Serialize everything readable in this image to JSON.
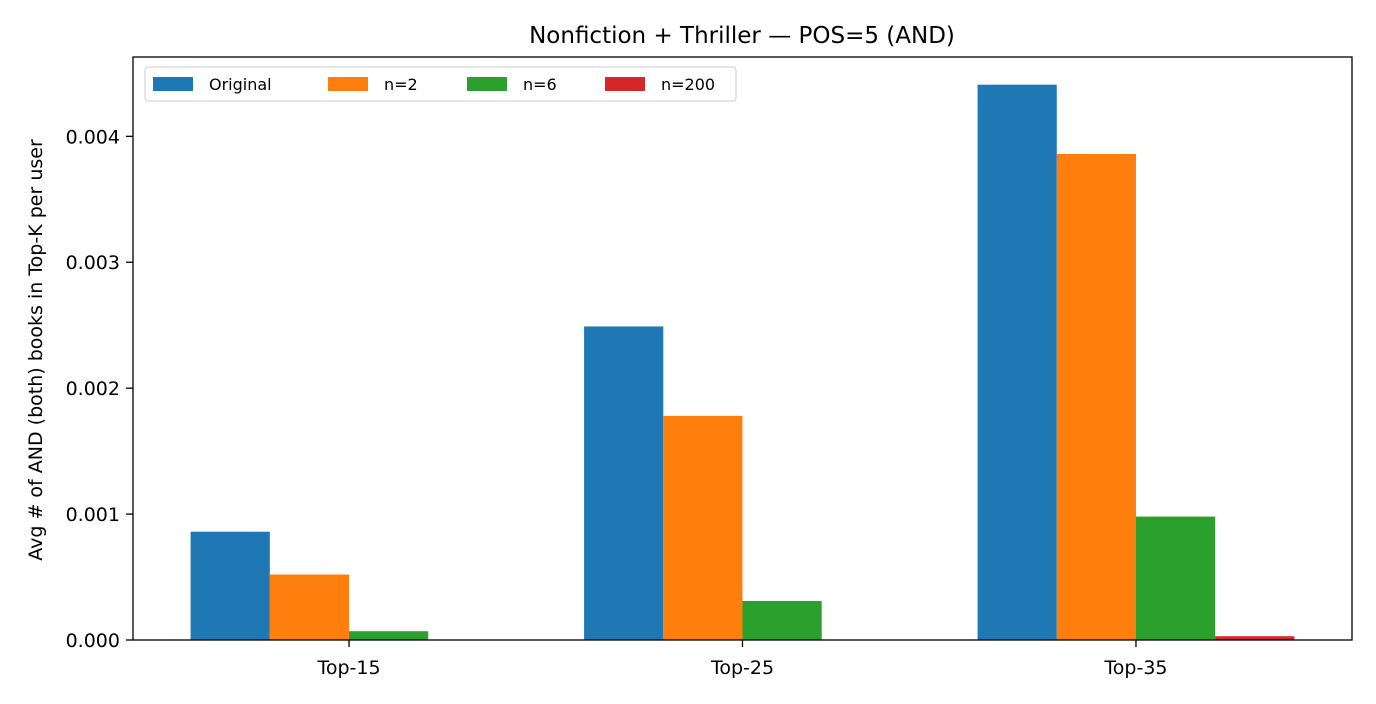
{
  "chart_data": {
    "type": "bar",
    "title": "Nonfiction + Thriller — POS=5 (AND)",
    "xlabel": "",
    "ylabel": "Avg # of AND (both) books in Top-K per user",
    "categories": [
      "Top-15",
      "Top-25",
      "Top-35"
    ],
    "series": [
      {
        "name": "Original",
        "color": "#1f77b4",
        "values": [
          0.00086,
          0.00249,
          0.00441
        ]
      },
      {
        "name": "n=2",
        "color": "#ff7f0e",
        "values": [
          0.00052,
          0.00178,
          0.00386
        ]
      },
      {
        "name": "n=6",
        "color": "#2ca02c",
        "values": [
          7e-05,
          0.00031,
          0.00098
        ]
      },
      {
        "name": "n=200",
        "color": "#d62728",
        "values": [
          0.0,
          0.0,
          3e-05
        ]
      }
    ],
    "ylim": [
      0,
      0.00463
    ],
    "yticks": [
      0.0,
      0.001,
      0.002,
      0.003,
      0.004
    ],
    "ytick_labels": [
      "0.000",
      "0.001",
      "0.002",
      "0.003",
      "0.004"
    ],
    "grid": false,
    "legend": {
      "position": "top-left",
      "orientation": "horizontal"
    }
  }
}
